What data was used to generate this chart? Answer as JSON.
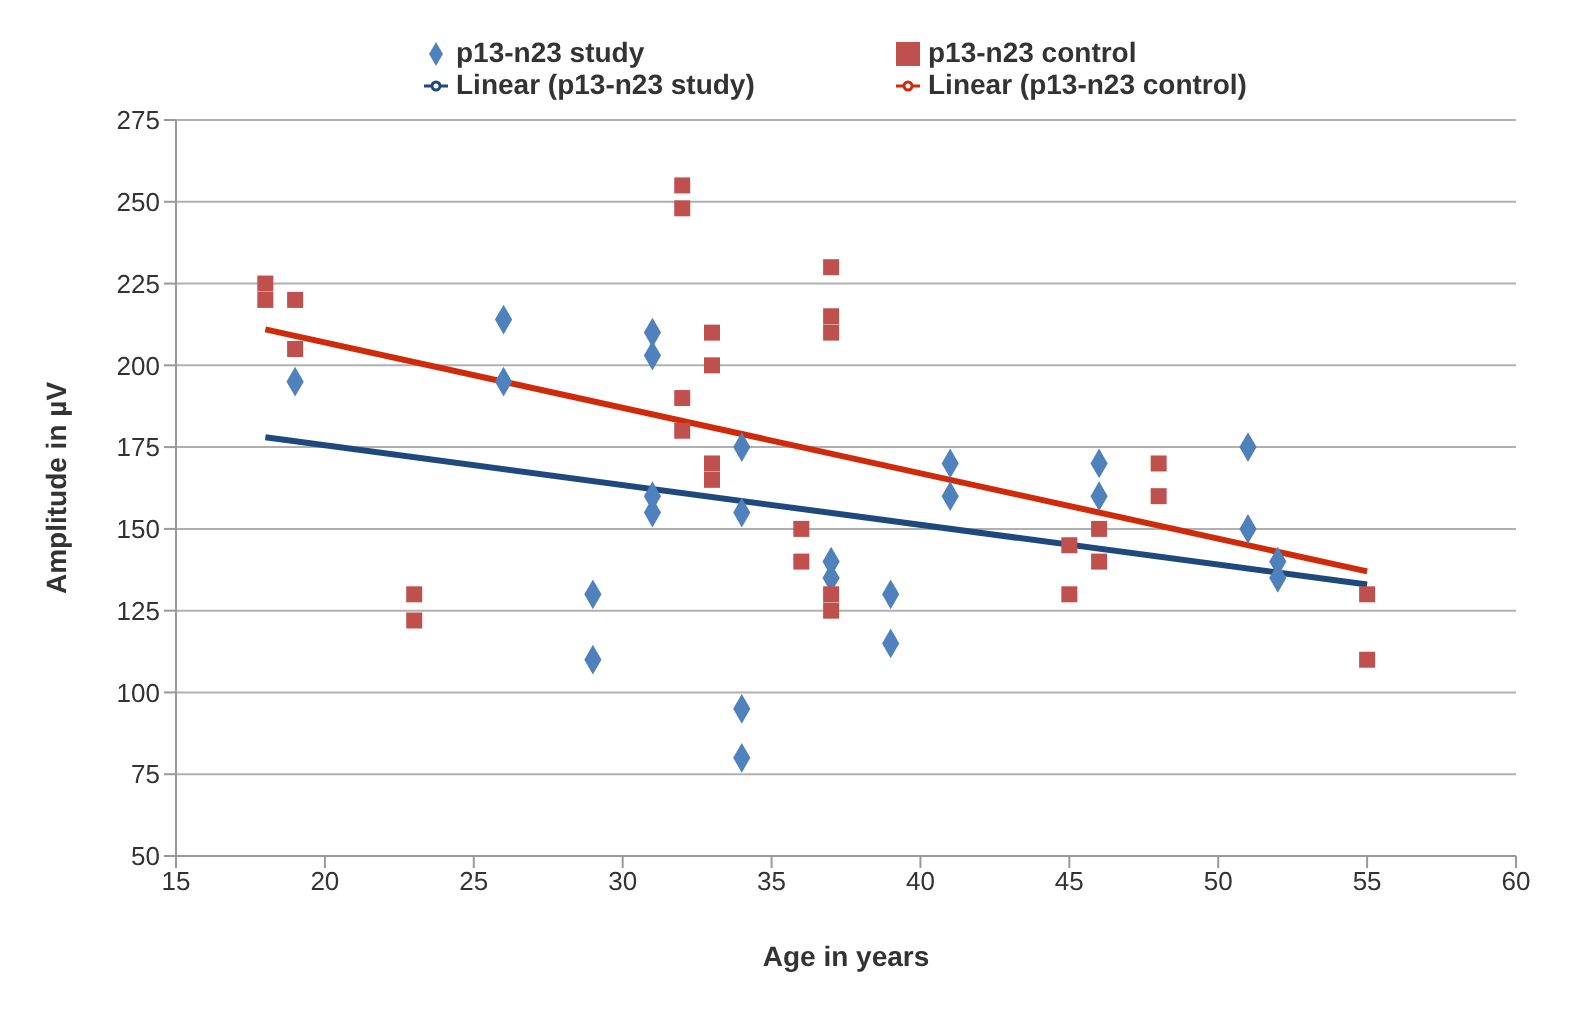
{
  "chart_data": {
    "type": "scatter",
    "xlabel": "Age in years",
    "ylabel": "Amplitude in µV",
    "xlim": [
      15,
      60
    ],
    "xticks": [
      15,
      20,
      25,
      30,
      35,
      40,
      45,
      50,
      55,
      60
    ],
    "ylim": [
      50,
      275
    ],
    "yticks": [
      50,
      75,
      100,
      125,
      150,
      175,
      200,
      225,
      250,
      275
    ],
    "grid": "y",
    "legend": "top",
    "series": [
      {
        "name": "p13-n23 study",
        "marker": "diamond",
        "color": "#4f81bd",
        "x": [
          19,
          26,
          26,
          29,
          29,
          31,
          31,
          31,
          31,
          34,
          34,
          34,
          34,
          37,
          37,
          39,
          39,
          41,
          41,
          46,
          46,
          51,
          51,
          52,
          52
        ],
        "values": [
          195,
          214,
          195,
          130,
          110,
          210,
          203,
          160,
          155,
          175,
          155,
          95,
          80,
          140,
          135,
          130,
          115,
          170,
          160,
          170,
          160,
          175,
          150,
          140,
          135
        ]
      },
      {
        "name": "p13-n23 control",
        "marker": "square",
        "color": "#c0504d",
        "x": [
          18,
          18,
          19,
          19,
          23,
          23,
          32,
          32,
          32,
          32,
          33,
          33,
          33,
          33,
          36,
          36,
          37,
          37,
          37,
          37,
          37,
          45,
          45,
          46,
          46,
          48,
          48,
          55,
          55
        ],
        "values": [
          225,
          220,
          220,
          205,
          130,
          122,
          255,
          248,
          190,
          180,
          210,
          200,
          170,
          165,
          150,
          140,
          230,
          215,
          210,
          130,
          125,
          145,
          130,
          150,
          140,
          170,
          160,
          130,
          110
        ]
      },
      {
        "name": "Linear (p13-n23 study)",
        "type": "line",
        "marker": "none",
        "color": "#1f497d",
        "x": [
          18,
          55
        ],
        "values": [
          178,
          133
        ]
      },
      {
        "name": "Linear (p13-n23 control)",
        "type": "line",
        "marker": "none",
        "color": "#d02a0a",
        "x": [
          18,
          55
        ],
        "values": [
          211,
          137
        ]
      }
    ]
  }
}
